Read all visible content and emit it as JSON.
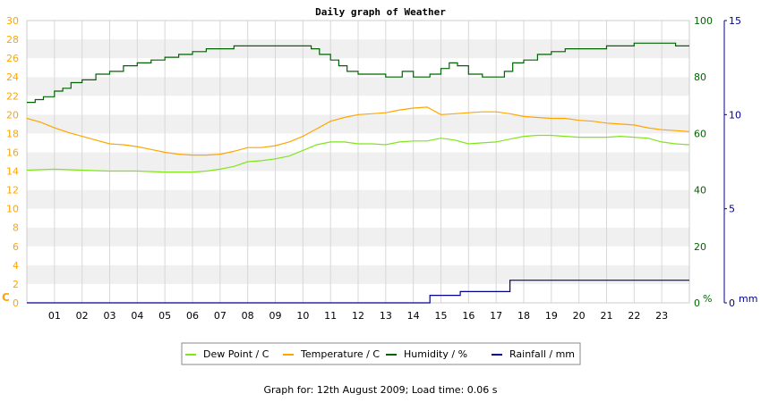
{
  "chart_data": {
    "type": "line",
    "title": "Daily graph of Weather",
    "x_ticks": [
      "01",
      "02",
      "03",
      "04",
      "05",
      "06",
      "07",
      "08",
      "09",
      "10",
      "11",
      "12",
      "13",
      "14",
      "15",
      "16",
      "17",
      "18",
      "19",
      "20",
      "21",
      "22",
      "23"
    ],
    "x_range": [
      0,
      24
    ],
    "left_axis": {
      "unit_label": "C",
      "range": [
        0,
        30
      ],
      "ticks": [
        0,
        2,
        4,
        6,
        8,
        10,
        12,
        14,
        16,
        18,
        20,
        22,
        24,
        26,
        28,
        30
      ],
      "color": "#ffa500"
    },
    "right_axis_humidity": {
      "unit_label": "%",
      "range": [
        0,
        100
      ],
      "ticks": [
        0,
        20,
        40,
        60,
        80,
        100
      ],
      "color": "#006400"
    },
    "right_axis_rain": {
      "unit_label": "mm",
      "range": [
        0,
        15
      ],
      "ticks": [
        0,
        5,
        10,
        15
      ],
      "color": "#00008b"
    },
    "grid": true,
    "legend_position": "bottom",
    "series": [
      {
        "name": "Dew Point / C",
        "axis": "temp",
        "color": "#7fe61a",
        "x": [
          0,
          1,
          2,
          3,
          4,
          5,
          6,
          6.5,
          7,
          7.5,
          8,
          8.5,
          9,
          9.5,
          10,
          10.5,
          11,
          11.5,
          12,
          12.5,
          13,
          13.5,
          14,
          14.5,
          15,
          15.5,
          16,
          16.5,
          17,
          17.5,
          18,
          18.5,
          19,
          19.5,
          20,
          20.5,
          21,
          21.5,
          22,
          22.5,
          23,
          23.5,
          24
        ],
        "y": [
          14.1,
          14.2,
          14.1,
          14.0,
          14.0,
          13.9,
          13.9,
          14.0,
          14.2,
          14.5,
          15.0,
          15.1,
          15.3,
          15.6,
          16.2,
          16.8,
          17.1,
          17.1,
          16.9,
          16.9,
          16.8,
          17.1,
          17.2,
          17.2,
          17.5,
          17.3,
          16.9,
          17.0,
          17.1,
          17.4,
          17.7,
          17.8,
          17.8,
          17.7,
          17.6,
          17.6,
          17.6,
          17.7,
          17.6,
          17.5,
          17.1,
          16.9,
          16.8
        ]
      },
      {
        "name": "Temperature / C",
        "axis": "temp",
        "color": "#ffa500",
        "x": [
          0,
          0.5,
          1,
          1.5,
          2,
          2.5,
          3,
          3.5,
          4,
          4.5,
          5,
          5.5,
          6,
          6.5,
          7,
          7.5,
          8,
          8.5,
          9,
          9.5,
          10,
          10.5,
          11,
          11.5,
          12,
          12.5,
          13,
          13.5,
          14,
          14.5,
          15,
          15.5,
          16,
          16.5,
          17,
          17.5,
          18,
          18.5,
          19,
          19.5,
          20,
          20.5,
          21,
          21.5,
          22,
          22.5,
          23,
          23.5,
          24
        ],
        "y": [
          19.6,
          19.2,
          18.6,
          18.1,
          17.7,
          17.3,
          16.9,
          16.8,
          16.6,
          16.3,
          16.0,
          15.8,
          15.7,
          15.7,
          15.8,
          16.1,
          16.5,
          16.5,
          16.7,
          17.1,
          17.7,
          18.5,
          19.3,
          19.7,
          20.0,
          20.1,
          20.2,
          20.5,
          20.7,
          20.8,
          20.0,
          20.1,
          20.2,
          20.3,
          20.3,
          20.1,
          19.8,
          19.7,
          19.6,
          19.6,
          19.4,
          19.3,
          19.1,
          19.0,
          18.9,
          18.6,
          18.4,
          18.3,
          18.2
        ]
      },
      {
        "name": "Humidity / %",
        "axis": "humidity",
        "color": "#006400",
        "step": true,
        "x": [
          0,
          0.3,
          0.6,
          1,
          1.3,
          1.6,
          2,
          2.5,
          3,
          3.5,
          4,
          4.5,
          5,
          5.5,
          6,
          6.5,
          7,
          7.5,
          8,
          8.5,
          9,
          9.5,
          10,
          10.3,
          10.6,
          11,
          11.3,
          11.6,
          12,
          12.5,
          13,
          13.3,
          13.6,
          14,
          14.3,
          14.6,
          15,
          15.3,
          15.6,
          16,
          16.5,
          17,
          17.3,
          17.6,
          18,
          18.5,
          19,
          19.5,
          20,
          20.5,
          21,
          21.5,
          22,
          22.5,
          23,
          23.5,
          24
        ],
        "y": [
          71,
          72,
          73,
          75,
          76,
          78,
          79,
          81,
          82,
          84,
          85,
          86,
          87,
          88,
          89,
          90,
          90,
          91,
          91,
          91,
          91,
          91,
          91,
          90,
          88,
          86,
          84,
          82,
          81,
          81,
          80,
          80,
          82,
          80,
          80,
          81,
          83,
          85,
          84,
          81,
          80,
          80,
          82,
          85,
          86,
          88,
          89,
          90,
          90,
          90,
          91,
          91,
          92,
          92,
          92,
          91,
          91
        ]
      },
      {
        "name": "Rainfall / mm",
        "axis": "rain",
        "color": "#00008b",
        "step": true,
        "x": [
          0,
          14.6,
          15.7,
          17.5,
          24
        ],
        "y": [
          0,
          0.4,
          0.6,
          1.2,
          1.2
        ]
      }
    ]
  },
  "footer": {
    "text": "Graph for: 12th August 2009; Load time: 0.06 s"
  }
}
